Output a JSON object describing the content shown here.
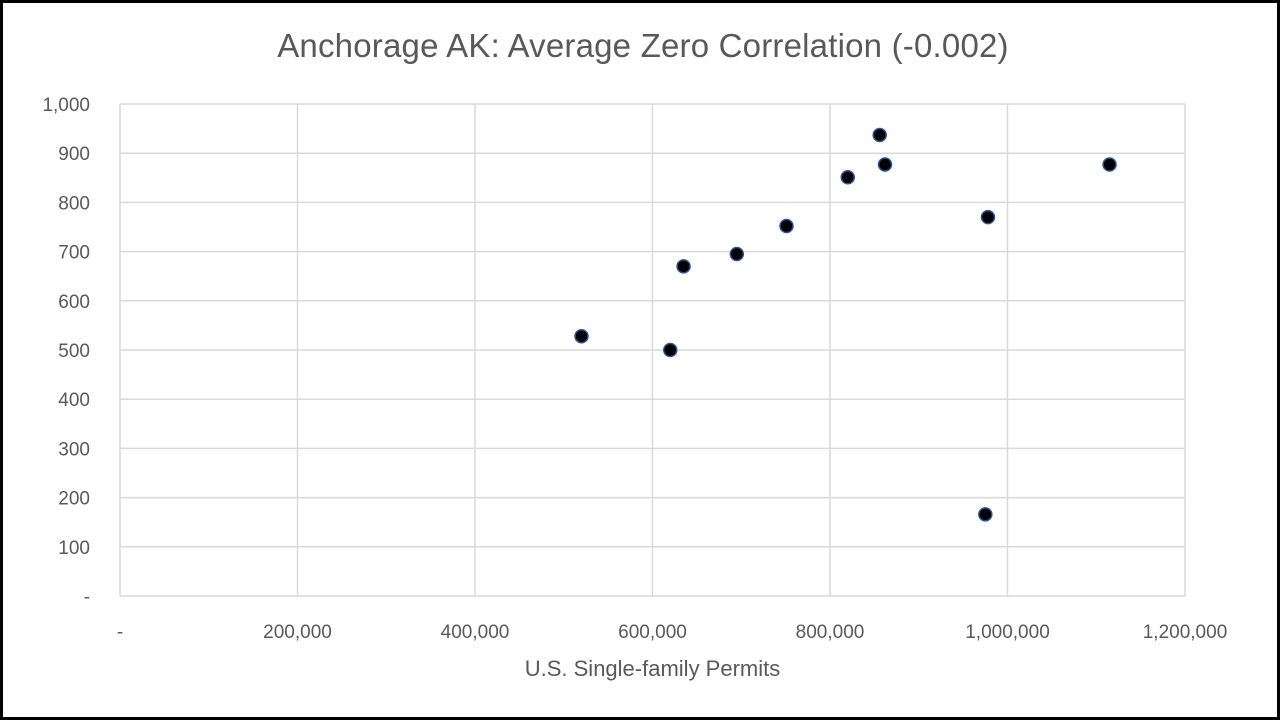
{
  "chart_data": {
    "type": "scatter",
    "title": "Anchorage AK: Average Zero Correlation (-0.002)",
    "xlabel": "U.S. Single-family Permits",
    "ylabel": "",
    "xlim": [
      0,
      1200000
    ],
    "ylim": [
      0,
      1000
    ],
    "x_ticks": [
      0,
      200000,
      400000,
      600000,
      800000,
      1000000,
      1200000
    ],
    "x_tick_labels": [
      "-",
      "200,000",
      "400,000",
      "600,000",
      "800,000",
      "1,000,000",
      "1,200,000"
    ],
    "y_ticks": [
      0,
      100,
      200,
      300,
      400,
      500,
      600,
      700,
      800,
      900,
      1000
    ],
    "y_tick_labels": [
      "-",
      "100",
      "200",
      "300",
      "400",
      "500",
      "600",
      "700",
      "800",
      "900",
      "1,000"
    ],
    "grid": true,
    "marker_color": "#000000",
    "marker_edge_color": "#2f5597",
    "gridline_color": "#d9d9d9",
    "points": [
      {
        "x": 520000,
        "y": 528
      },
      {
        "x": 620000,
        "y": 500
      },
      {
        "x": 635000,
        "y": 670
      },
      {
        "x": 695000,
        "y": 695
      },
      {
        "x": 751000,
        "y": 752
      },
      {
        "x": 820000,
        "y": 851
      },
      {
        "x": 856000,
        "y": 937
      },
      {
        "x": 862000,
        "y": 877
      },
      {
        "x": 978000,
        "y": 770
      },
      {
        "x": 975000,
        "y": 166
      },
      {
        "x": 1115000,
        "y": 877
      }
    ]
  }
}
